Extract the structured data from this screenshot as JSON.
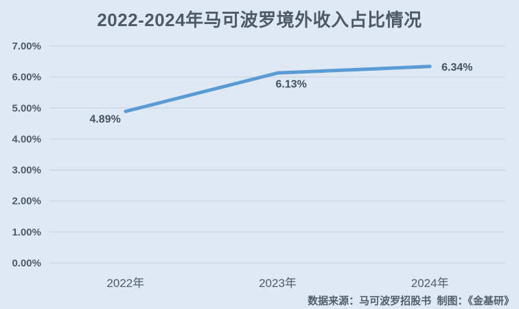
{
  "colors": {
    "background": "#dee9f4",
    "line": "#5b9bd5",
    "gridline": "#ccd7e2",
    "text": "#4d5a66"
  },
  "chart_data": {
    "type": "line",
    "title": "2022-2024年马可波罗境外收入占比情况",
    "categories": [
      "2022年",
      "2023年",
      "2024年"
    ],
    "values": [
      4.89,
      6.13,
      6.34
    ],
    "data_labels": [
      "4.89%",
      "6.13%",
      "6.34%"
    ],
    "ylim": [
      0,
      7
    ],
    "ytick_values": [
      0,
      1,
      2,
      3,
      4,
      5,
      6,
      7
    ],
    "ytick_labels": [
      "0.00%",
      "1.00%",
      "2.00%",
      "3.00%",
      "4.00%",
      "5.00%",
      "6.00%",
      "7.00%"
    ],
    "grid": true,
    "legend": "none",
    "source_note": "数据来源：马可波罗招股书  制图：《金基研》"
  }
}
